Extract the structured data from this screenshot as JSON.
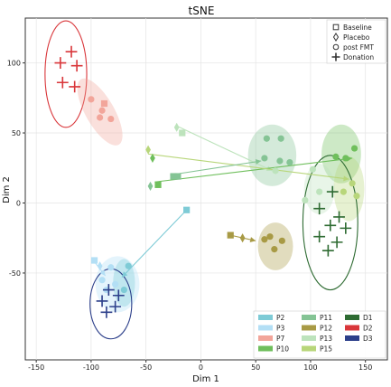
{
  "chart_data": {
    "type": "scatter",
    "title": "tSNE",
    "xlabel": "Dim 1",
    "ylabel": "Dim 2",
    "xlim": [
      -160,
      170
    ],
    "ylim": [
      -112,
      132
    ],
    "xticks": [
      -150,
      -100,
      -50,
      0,
      50,
      100,
      150
    ],
    "yticks": [
      -50,
      0,
      50,
      100
    ],
    "grid": true,
    "marker_legend": {
      "placement": "top-right",
      "entries": [
        {
          "label": "Baseline",
          "marker": "square"
        },
        {
          "label": "Placebo",
          "marker": "diamond"
        },
        {
          "label": "post FMT",
          "marker": "circle"
        },
        {
          "label": "Donation",
          "marker": "plus"
        }
      ]
    },
    "group_legend": {
      "placement": "bottom-right",
      "entries": [
        {
          "label": "P2",
          "color": "#7ecbd6"
        },
        {
          "label": "P3",
          "color": "#b3dff5"
        },
        {
          "label": "P7",
          "color": "#f2a59a"
        },
        {
          "label": "P10",
          "color": "#6fbf5c"
        },
        {
          "label": "P11",
          "color": "#85c495"
        },
        {
          "label": "P12",
          "color": "#a89a45"
        },
        {
          "label": "P13",
          "color": "#bde3bc"
        },
        {
          "label": "P15",
          "color": "#b8d67a"
        },
        {
          "label": "D1",
          "color": "#2e6b32"
        },
        {
          "label": "D2",
          "color": "#d9363a"
        },
        {
          "label": "D3",
          "color": "#2c3f8a"
        }
      ]
    },
    "ellipses": [
      {
        "group": "D2",
        "cx": -123,
        "cy": 92,
        "rx": 19,
        "ry": 38,
        "angle": 0,
        "fill": "none",
        "stroke": "#d9363a"
      },
      {
        "group": "P7",
        "cx": -92,
        "cy": 65,
        "rx": 13,
        "ry": 27,
        "angle": 30,
        "fill": "#f2a59a",
        "stroke": "none"
      },
      {
        "group": "P11",
        "cx": 65,
        "cy": 34,
        "rx": 22,
        "ry": 22,
        "angle": 0,
        "fill": "#85c495",
        "stroke": "none"
      },
      {
        "group": "P10",
        "cx": 128,
        "cy": 35,
        "rx": 18,
        "ry": 21,
        "angle": 0,
        "fill": "#6fbf5c",
        "stroke": "none"
      },
      {
        "group": "P15",
        "cx": 135,
        "cy": 10,
        "rx": 14,
        "ry": 23,
        "angle": 0,
        "fill": "#b8d67a",
        "stroke": "none"
      },
      {
        "group": "P13",
        "cx": 108,
        "cy": 10,
        "rx": 14,
        "ry": 18,
        "angle": 0,
        "fill": "#bde3bc",
        "stroke": "none"
      },
      {
        "group": "D1",
        "cx": 118,
        "cy": -14,
        "rx": 25,
        "ry": 48,
        "angle": 0,
        "fill": "none",
        "stroke": "#2e6b32"
      },
      {
        "group": "P12",
        "cx": 68,
        "cy": -31,
        "rx": 16,
        "ry": 17,
        "angle": 0,
        "fill": "#a89a45",
        "stroke": "none"
      },
      {
        "group": "P3",
        "cx": -76,
        "cy": -58,
        "rx": 20,
        "ry": 20,
        "angle": 0,
        "fill": "#b3dff5",
        "stroke": "none"
      },
      {
        "group": "P2",
        "cx": -70,
        "cy": -57,
        "rx": 10,
        "ry": 17,
        "angle": 0,
        "fill": "#7ecbd6",
        "stroke": "none"
      },
      {
        "group": "D3",
        "cx": -82,
        "cy": -72,
        "rx": 19,
        "ry": 25,
        "angle": 0,
        "fill": "none",
        "stroke": "#2c3f8a"
      }
    ],
    "arrows": [
      {
        "group": "P13",
        "x1": -22,
        "y1": 55,
        "x2": 65,
        "y2": 23
      },
      {
        "group": "P10",
        "x1": -42,
        "y1": 15,
        "x2": 138,
        "y2": 32
      },
      {
        "group": "P15",
        "x1": -48,
        "y1": 35,
        "x2": 135,
        "y2": 17
      },
      {
        "group": "P11",
        "x1": -28,
        "y1": 20,
        "x2": 55,
        "y2": 30
      },
      {
        "group": "P12",
        "x1": 27,
        "y1": -23,
        "x2": 50,
        "y2": -27
      },
      {
        "group": "P2",
        "x1": -13,
        "y1": -5,
        "x2": -72,
        "y2": -53
      },
      {
        "group": "P3",
        "x1": -97,
        "y1": -42,
        "x2": -87,
        "y2": -52
      }
    ],
    "series": [
      {
        "name": "D2",
        "color": "#d9363a",
        "marker": "plus",
        "points": [
          [
            -118,
            108
          ],
          [
            -128,
            100
          ],
          [
            -113,
            98
          ],
          [
            -126,
            86
          ],
          [
            -115,
            83
          ]
        ]
      },
      {
        "name": "P7",
        "color": "#f2a59a",
        "marker": "square",
        "points": [
          [
            -88,
            71
          ]
        ]
      },
      {
        "name": "P7",
        "color": "#f2a59a",
        "marker": "circle",
        "points": [
          [
            -100,
            74
          ],
          [
            -90,
            66
          ],
          [
            -92,
            61
          ],
          [
            -82,
            60
          ]
        ]
      },
      {
        "name": "P13",
        "color": "#bde3bc",
        "marker": "diamond",
        "points": [
          [
            -22,
            54
          ]
        ]
      },
      {
        "name": "P13",
        "color": "#bde3bc",
        "marker": "square",
        "points": [
          [
            -17,
            50
          ]
        ]
      },
      {
        "name": "P13",
        "color": "#bde3bc",
        "marker": "circle",
        "points": [
          [
            68,
            23
          ],
          [
            102,
            24
          ],
          [
            108,
            8
          ],
          [
            95,
            2
          ]
        ]
      },
      {
        "name": "P11",
        "color": "#85c495",
        "marker": "circle",
        "points": [
          [
            60,
            46
          ],
          [
            73,
            46
          ],
          [
            72,
            30
          ],
          [
            58,
            32
          ],
          [
            81,
            29
          ]
        ]
      },
      {
        "name": "P10",
        "color": "#6fbf5c",
        "marker": "circle",
        "points": [
          [
            123,
            33
          ],
          [
            132,
            32
          ],
          [
            140,
            39
          ]
        ]
      },
      {
        "name": "P10",
        "color": "#6fbf5c",
        "marker": "diamond",
        "points": [
          [
            -44,
            32
          ]
        ]
      },
      {
        "name": "P10",
        "color": "#6fbf5c",
        "marker": "square",
        "points": [
          [
            -39,
            13
          ]
        ]
      },
      {
        "name": "P15",
        "color": "#b8d67a",
        "marker": "diamond",
        "points": [
          [
            -48,
            38
          ]
        ]
      },
      {
        "name": "P15",
        "color": "#b8d67a",
        "marker": "circle",
        "points": [
          [
            138,
            14
          ],
          [
            130,
            8
          ],
          [
            142,
            5
          ]
        ]
      },
      {
        "name": "P11",
        "color": "#85c495",
        "marker": "diamond",
        "points": [
          [
            -46,
            12
          ]
        ]
      },
      {
        "name": "P11",
        "color": "#85c495",
        "marker": "square",
        "points": [
          [
            -25,
            19
          ],
          [
            -21,
            19
          ]
        ]
      },
      {
        "name": "D1",
        "color": "#2e6b32",
        "marker": "plus",
        "points": [
          [
            120,
            8
          ],
          [
            108,
            -4
          ],
          [
            126,
            -10
          ],
          [
            118,
            -16
          ],
          [
            132,
            -18
          ],
          [
            108,
            -24
          ],
          [
            124,
            -28
          ],
          [
            116,
            -34
          ]
        ]
      },
      {
        "name": "P12",
        "color": "#a89a45",
        "marker": "square",
        "points": [
          [
            27,
            -23
          ]
        ]
      },
      {
        "name": "P12",
        "color": "#a89a45",
        "marker": "diamond",
        "points": [
          [
            38,
            -25
          ]
        ]
      },
      {
        "name": "P12",
        "color": "#a89a45",
        "marker": "circle",
        "points": [
          [
            63,
            -24
          ],
          [
            74,
            -27
          ],
          [
            67,
            -33
          ],
          [
            58,
            -26
          ]
        ]
      },
      {
        "name": "P2",
        "color": "#7ecbd6",
        "marker": "square",
        "points": [
          [
            -13,
            -5
          ]
        ]
      },
      {
        "name": "P2",
        "color": "#7ecbd6",
        "marker": "circle",
        "points": [
          [
            -66,
            -45
          ],
          [
            -70,
            -62
          ]
        ]
      },
      {
        "name": "P3",
        "color": "#b3dff5",
        "marker": "square",
        "points": [
          [
            -97,
            -41
          ]
        ]
      },
      {
        "name": "P3",
        "color": "#b3dff5",
        "marker": "diamond",
        "points": [
          [
            -92,
            -45
          ]
        ]
      },
      {
        "name": "P3",
        "color": "#b3dff5",
        "marker": "circle",
        "points": [
          [
            -82,
            -46
          ],
          [
            -90,
            -55
          ],
          [
            -78,
            -58
          ],
          [
            -86,
            -62
          ]
        ]
      },
      {
        "name": "D3",
        "color": "#2c3f8a",
        "marker": "plus",
        "points": [
          [
            -84,
            -62
          ],
          [
            -75,
            -66
          ],
          [
            -90,
            -70
          ],
          [
            -78,
            -74
          ],
          [
            -86,
            -78
          ]
        ]
      }
    ]
  }
}
